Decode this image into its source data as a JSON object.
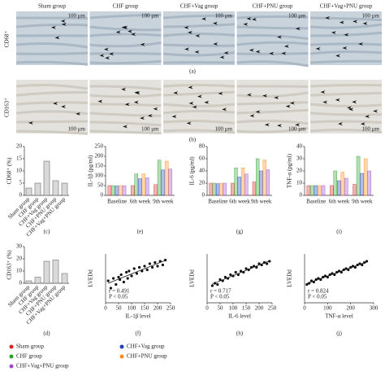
{
  "micrographs": {
    "groups": [
      "Sham group",
      "CHF group",
      "CHF+Vag group",
      "CHF+PNU group",
      "CHF+Vag+PNU group"
    ],
    "scale_bar": "100 μm",
    "row_labels": [
      "CD68⁺",
      "CD163⁺"
    ],
    "panel_labels": [
      "(a)",
      "(b)"
    ]
  },
  "chart_data": [
    {
      "type": "bar",
      "label": "(c)",
      "ylabel": "CD68⁺ (%)",
      "categories": [
        "Sham group",
        "CHF group",
        "CHF+Vag group",
        "CHF+PNU group",
        "CHF+Vag+PNU group"
      ],
      "values": [
        3,
        5,
        14,
        6,
        5
      ],
      "color": "#d9d9d9",
      "ylim": [
        0,
        20
      ],
      "yticks": [
        0,
        5,
        10,
        15,
        20
      ]
    },
    {
      "type": "grouped_bar",
      "label": "(e)",
      "ylabel": "IL-1β (pg/ml)",
      "categories": [
        "Baseline",
        "6th week",
        "9th week"
      ],
      "series": [
        {
          "name": "Sham group",
          "color": "#d62728",
          "values": [
            50,
            50,
            55
          ]
        },
        {
          "name": "CHF group",
          "color": "#2ca02c",
          "values": [
            50,
            110,
            180
          ]
        },
        {
          "name": "CHF+Vag group",
          "color": "#1f3fbf",
          "values": [
            48,
            85,
            130
          ]
        },
        {
          "name": "CHF+PNU group",
          "color": "#ff8c1a",
          "values": [
            50,
            110,
            175
          ]
        },
        {
          "name": "CHF+Vag+PNU group",
          "color": "#9b4dca",
          "values": [
            49,
            90,
            135
          ]
        }
      ],
      "ylim": [
        0,
        250
      ],
      "yticks": [
        0,
        50,
        100,
        150,
        200,
        250
      ]
    },
    {
      "type": "grouped_bar",
      "label": "(g)",
      "ylabel": "IL-6 (pg/ml)",
      "categories": [
        "Baseline",
        "6th week",
        "9th week"
      ],
      "series": [
        {
          "name": "Sham group",
          "color": "#d62728",
          "values": [
            20,
            20,
            22
          ]
        },
        {
          "name": "CHF group",
          "color": "#2ca02c",
          "values": [
            20,
            45,
            60
          ]
        },
        {
          "name": "CHF+Vag group",
          "color": "#1f3fbf",
          "values": [
            19,
            30,
            40
          ]
        },
        {
          "name": "CHF+PNU group",
          "color": "#ff8c1a",
          "values": [
            20,
            45,
            58
          ]
        },
        {
          "name": "CHF+Vag+PNU group",
          "color": "#9b4dca",
          "values": [
            20,
            35,
            42
          ]
        }
      ],
      "ylim": [
        0,
        80
      ],
      "yticks": [
        0,
        20,
        40,
        60,
        80
      ]
    },
    {
      "type": "grouped_bar",
      "label": "(i)",
      "ylabel": "TNF-α (pg/ml)",
      "categories": [
        "Baseline",
        "6th week",
        "9th week"
      ],
      "series": [
        {
          "name": "Sham group",
          "color": "#d62728",
          "values": [
            8,
            8,
            9
          ]
        },
        {
          "name": "CHF group",
          "color": "#2ca02c",
          "values": [
            8,
            20,
            32
          ]
        },
        {
          "name": "CHF+Vag group",
          "color": "#1f3fbf",
          "values": [
            8,
            12,
            18
          ]
        },
        {
          "name": "CHF+PNU group",
          "color": "#ff8c1a",
          "values": [
            8,
            19,
            30
          ]
        },
        {
          "name": "CHF+Vag+PNU group",
          "color": "#9b4dca",
          "values": [
            8,
            14,
            20
          ]
        }
      ],
      "ylim": [
        0,
        40
      ],
      "yticks": [
        0,
        10,
        20,
        30,
        40
      ]
    },
    {
      "type": "bar",
      "label": "(d)",
      "ylabel": "CD163⁺ (%)",
      "categories": [
        "Sham group",
        "CHF group",
        "CHF+Vag group",
        "CHF+PNU group",
        "CHF+Vag+PNU group"
      ],
      "values": [
        2,
        5,
        18,
        19,
        8
      ],
      "color": "#d9d9d9",
      "ylim": [
        0,
        30
      ],
      "yticks": [
        0,
        10,
        20,
        30
      ]
    },
    {
      "type": "scatter",
      "label": "(f)",
      "xlabel": "IL-1β level",
      "ylabel": "LVEDd",
      "annotations": [
        "r = 0.491",
        "P < 0.05"
      ],
      "color": "#111",
      "x": [
        10,
        20,
        30,
        40,
        50,
        55,
        60,
        70,
        80,
        85,
        90,
        100,
        110,
        120,
        130,
        140,
        150,
        160,
        170,
        180,
        190,
        200,
        210,
        220,
        230
      ],
      "y": [
        6.8,
        6.2,
        7.0,
        6.5,
        7.1,
        6.9,
        7.3,
        6.7,
        7.5,
        7.0,
        7.6,
        7.2,
        7.8,
        7.4,
        7.9,
        7.6,
        8.0,
        7.7,
        8.2,
        7.9,
        8.3,
        8.0,
        8.4,
        8.1,
        8.5
      ],
      "xlim": [
        0,
        250
      ],
      "xticks": [
        0,
        50,
        100,
        150,
        200,
        250
      ],
      "ylim": [
        5,
        9
      ]
    },
    {
      "type": "scatter",
      "label": "(h)",
      "xlabel": "IL-6 level",
      "ylabel": "LVEDd",
      "annotations": [
        "r = 0.717",
        "P < 0.05"
      ],
      "color": "#111",
      "x": [
        20,
        30,
        40,
        50,
        60,
        70,
        80,
        90,
        100,
        110,
        120,
        130,
        140,
        150,
        160,
        170,
        180,
        190,
        200,
        210,
        220,
        230,
        240
      ],
      "y": [
        6.4,
        6.6,
        6.5,
        6.9,
        6.8,
        7.1,
        7.0,
        7.3,
        7.2,
        7.5,
        7.3,
        7.6,
        7.5,
        7.8,
        7.7,
        7.9,
        8.0,
        7.9,
        8.2,
        8.1,
        8.3,
        8.2,
        8.4
      ],
      "xlim": [
        0,
        250
      ],
      "xticks": [
        0,
        50,
        100,
        150,
        200,
        250
      ],
      "ylim": [
        5,
        9
      ]
    },
    {
      "type": "scatter",
      "label": "(j)",
      "xlabel": "TNF-α level",
      "ylabel": "LVEDd",
      "annotations": [
        "r = 0.824",
        "P < 0.05"
      ],
      "color": "#111",
      "x": [
        10,
        20,
        30,
        40,
        50,
        60,
        70,
        80,
        90,
        100,
        110,
        120,
        130,
        140,
        150,
        160,
        170,
        180,
        190,
        200,
        210,
        220,
        230,
        240,
        250,
        260,
        270
      ],
      "y": [
        6.5,
        6.6,
        6.8,
        6.7,
        6.9,
        7.0,
        6.9,
        7.1,
        7.2,
        7.1,
        7.3,
        7.4,
        7.3,
        7.5,
        7.6,
        7.5,
        7.7,
        7.8,
        7.7,
        7.9,
        8.0,
        7.9,
        8.1,
        8.2,
        8.1,
        8.3,
        8.4
      ],
      "xlim": [
        0,
        300
      ],
      "xticks": [
        0,
        100,
        200,
        300
      ],
      "ylim": [
        5,
        9
      ]
    }
  ]
}
